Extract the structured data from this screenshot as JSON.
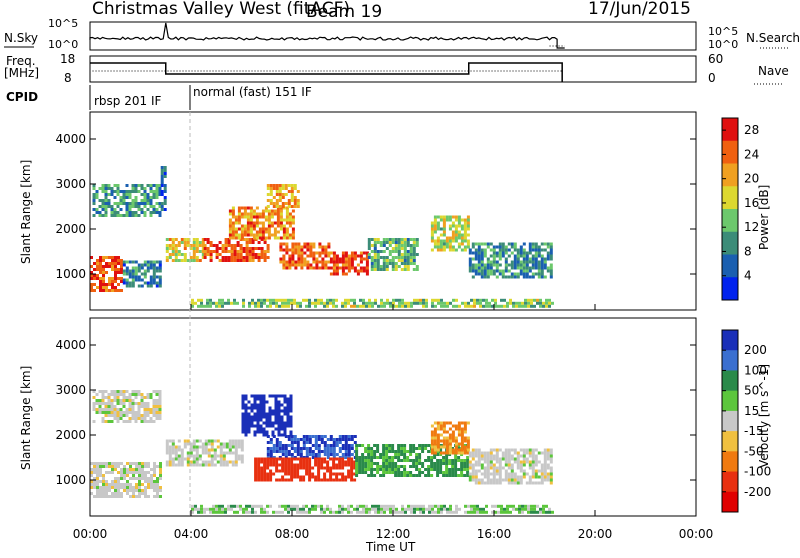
{
  "header": {
    "title": "Christmas Valley West (fitACF)",
    "beam": "Beam 19",
    "date": "17/Jun/2015"
  },
  "nsky_panel": {
    "label": "N.Sky",
    "left_ticks": [
      "10^5",
      "10^0"
    ],
    "right_ticks": [
      "10^5",
      "10^0"
    ],
    "right_label": "N.Search"
  },
  "freq_panel": {
    "label_line1": "Freq.",
    "label_line2": "[MHz]",
    "left_ticks": [
      "18",
      "8"
    ],
    "right_ticks": [
      "60",
      "0"
    ],
    "right_label": "Nave"
  },
  "cpid": {
    "label": "CPID",
    "modes": [
      {
        "name": "rbsp 201 IF",
        "start_hour": 0,
        "end_hour": 3.8
      },
      {
        "name": "normal (fast) 151 IF",
        "start_hour": 3.8,
        "end_hour": 18.7
      }
    ]
  },
  "chart_data": [
    {
      "type": "heatmap",
      "name": "power",
      "xlabel": "Time UT",
      "ylabel": "Slant Range [km]",
      "xlim": [
        0,
        24
      ],
      "ylim": [
        200,
        4600
      ],
      "yticks": [
        "1000",
        "2000",
        "3000",
        "4000"
      ],
      "colorbar": {
        "label": "Power [dB]",
        "ticks": [
          "4",
          "8",
          "12",
          "16",
          "20",
          "24",
          "28"
        ],
        "range": [
          0,
          30
        ],
        "colors": [
          "#0022ee",
          "#1a5fb0",
          "#3c8c78",
          "#6cc86c",
          "#dcd830",
          "#f0a020",
          "#f06010",
          "#e01010"
        ]
      },
      "echo_regions": [
        {
          "t0": 0.0,
          "t1": 1.3,
          "r0": 600,
          "r1": 1400,
          "level": 26
        },
        {
          "t0": 1.3,
          "t1": 2.8,
          "r0": 700,
          "r1": 1300,
          "level": 8
        },
        {
          "t0": 0.1,
          "t1": 2.8,
          "r0": 2300,
          "r1": 3000,
          "level": 10
        },
        {
          "t0": 2.8,
          "t1": 3.0,
          "r0": 2400,
          "r1": 3400,
          "level": 6
        },
        {
          "t0": 3.0,
          "t1": 4.5,
          "r0": 1300,
          "r1": 1800,
          "level": 18
        },
        {
          "t0": 4.5,
          "t1": 7.0,
          "r0": 1300,
          "r1": 1800,
          "level": 26
        },
        {
          "t0": 5.5,
          "t1": 8.0,
          "r0": 1800,
          "r1": 2500,
          "level": 22
        },
        {
          "t0": 7.0,
          "t1": 8.2,
          "r0": 2500,
          "r1": 3000,
          "level": 20
        },
        {
          "t0": 7.5,
          "t1": 9.5,
          "r0": 1100,
          "r1": 1700,
          "level": 24
        },
        {
          "t0": 9.5,
          "t1": 11.0,
          "r0": 1000,
          "r1": 1500,
          "level": 26
        },
        {
          "t0": 11.0,
          "t1": 13.0,
          "r0": 1100,
          "r1": 1800,
          "level": 12
        },
        {
          "t0": 13.5,
          "t1": 15.0,
          "r0": 1500,
          "r1": 2300,
          "level": 16
        },
        {
          "t0": 15.0,
          "t1": 18.3,
          "r0": 900,
          "r1": 1700,
          "level": 9
        },
        {
          "t0": 4.0,
          "t1": 18.3,
          "r0": 250,
          "r1": 450,
          "level": 14
        }
      ]
    },
    {
      "type": "heatmap",
      "name": "velocity",
      "xlabel": "Time UT",
      "ylabel": "Slant Range [km]",
      "xlim": [
        0,
        24
      ],
      "ylim": [
        200,
        4600
      ],
      "yticks": [
        "1000",
        "2000",
        "3000",
        "4000"
      ],
      "xticks": [
        "00:00",
        "04:00",
        "08:00",
        "12:00",
        "16:00",
        "20:00",
        "00:00"
      ],
      "colorbar": {
        "label": "Velocity [m s^-1]",
        "ticks": [
          "200",
          "100",
          "50",
          "15",
          "-15",
          "-50",
          "-100",
          "-200"
        ],
        "colors": [
          "#1a2fb8",
          "#3a6fd0",
          "#2a8a4a",
          "#5cc63c",
          "#c8c8c8",
          "#f0c040",
          "#f07a10",
          "#e83010",
          "#e00000"
        ]
      },
      "echo_regions": [
        {
          "t0": 0.0,
          "t1": 2.8,
          "r0": 600,
          "r1": 1400,
          "velocity": 0
        },
        {
          "t0": 0.1,
          "t1": 2.8,
          "r0": 2300,
          "r1": 3000,
          "velocity": 0
        },
        {
          "t0": 3.0,
          "t1": 6.0,
          "r0": 1300,
          "r1": 1900,
          "velocity": 0
        },
        {
          "t0": 6.0,
          "t1": 8.0,
          "r0": 2000,
          "r1": 2900,
          "velocity": 180
        },
        {
          "t0": 7.0,
          "t1": 10.5,
          "r0": 1500,
          "r1": 2000,
          "velocity": 150
        },
        {
          "t0": 6.5,
          "t1": 10.5,
          "r0": 1000,
          "r1": 1500,
          "velocity": -120
        },
        {
          "t0": 10.5,
          "t1": 15.0,
          "r0": 1100,
          "r1": 1800,
          "velocity": 40
        },
        {
          "t0": 13.5,
          "t1": 15.0,
          "r0": 1600,
          "r1": 2300,
          "velocity": -40
        },
        {
          "t0": 15.0,
          "t1": 18.3,
          "r0": 900,
          "r1": 1700,
          "velocity": 0
        },
        {
          "t0": 4.0,
          "t1": 18.3,
          "r0": 250,
          "r1": 450,
          "velocity": 20
        }
      ]
    }
  ]
}
